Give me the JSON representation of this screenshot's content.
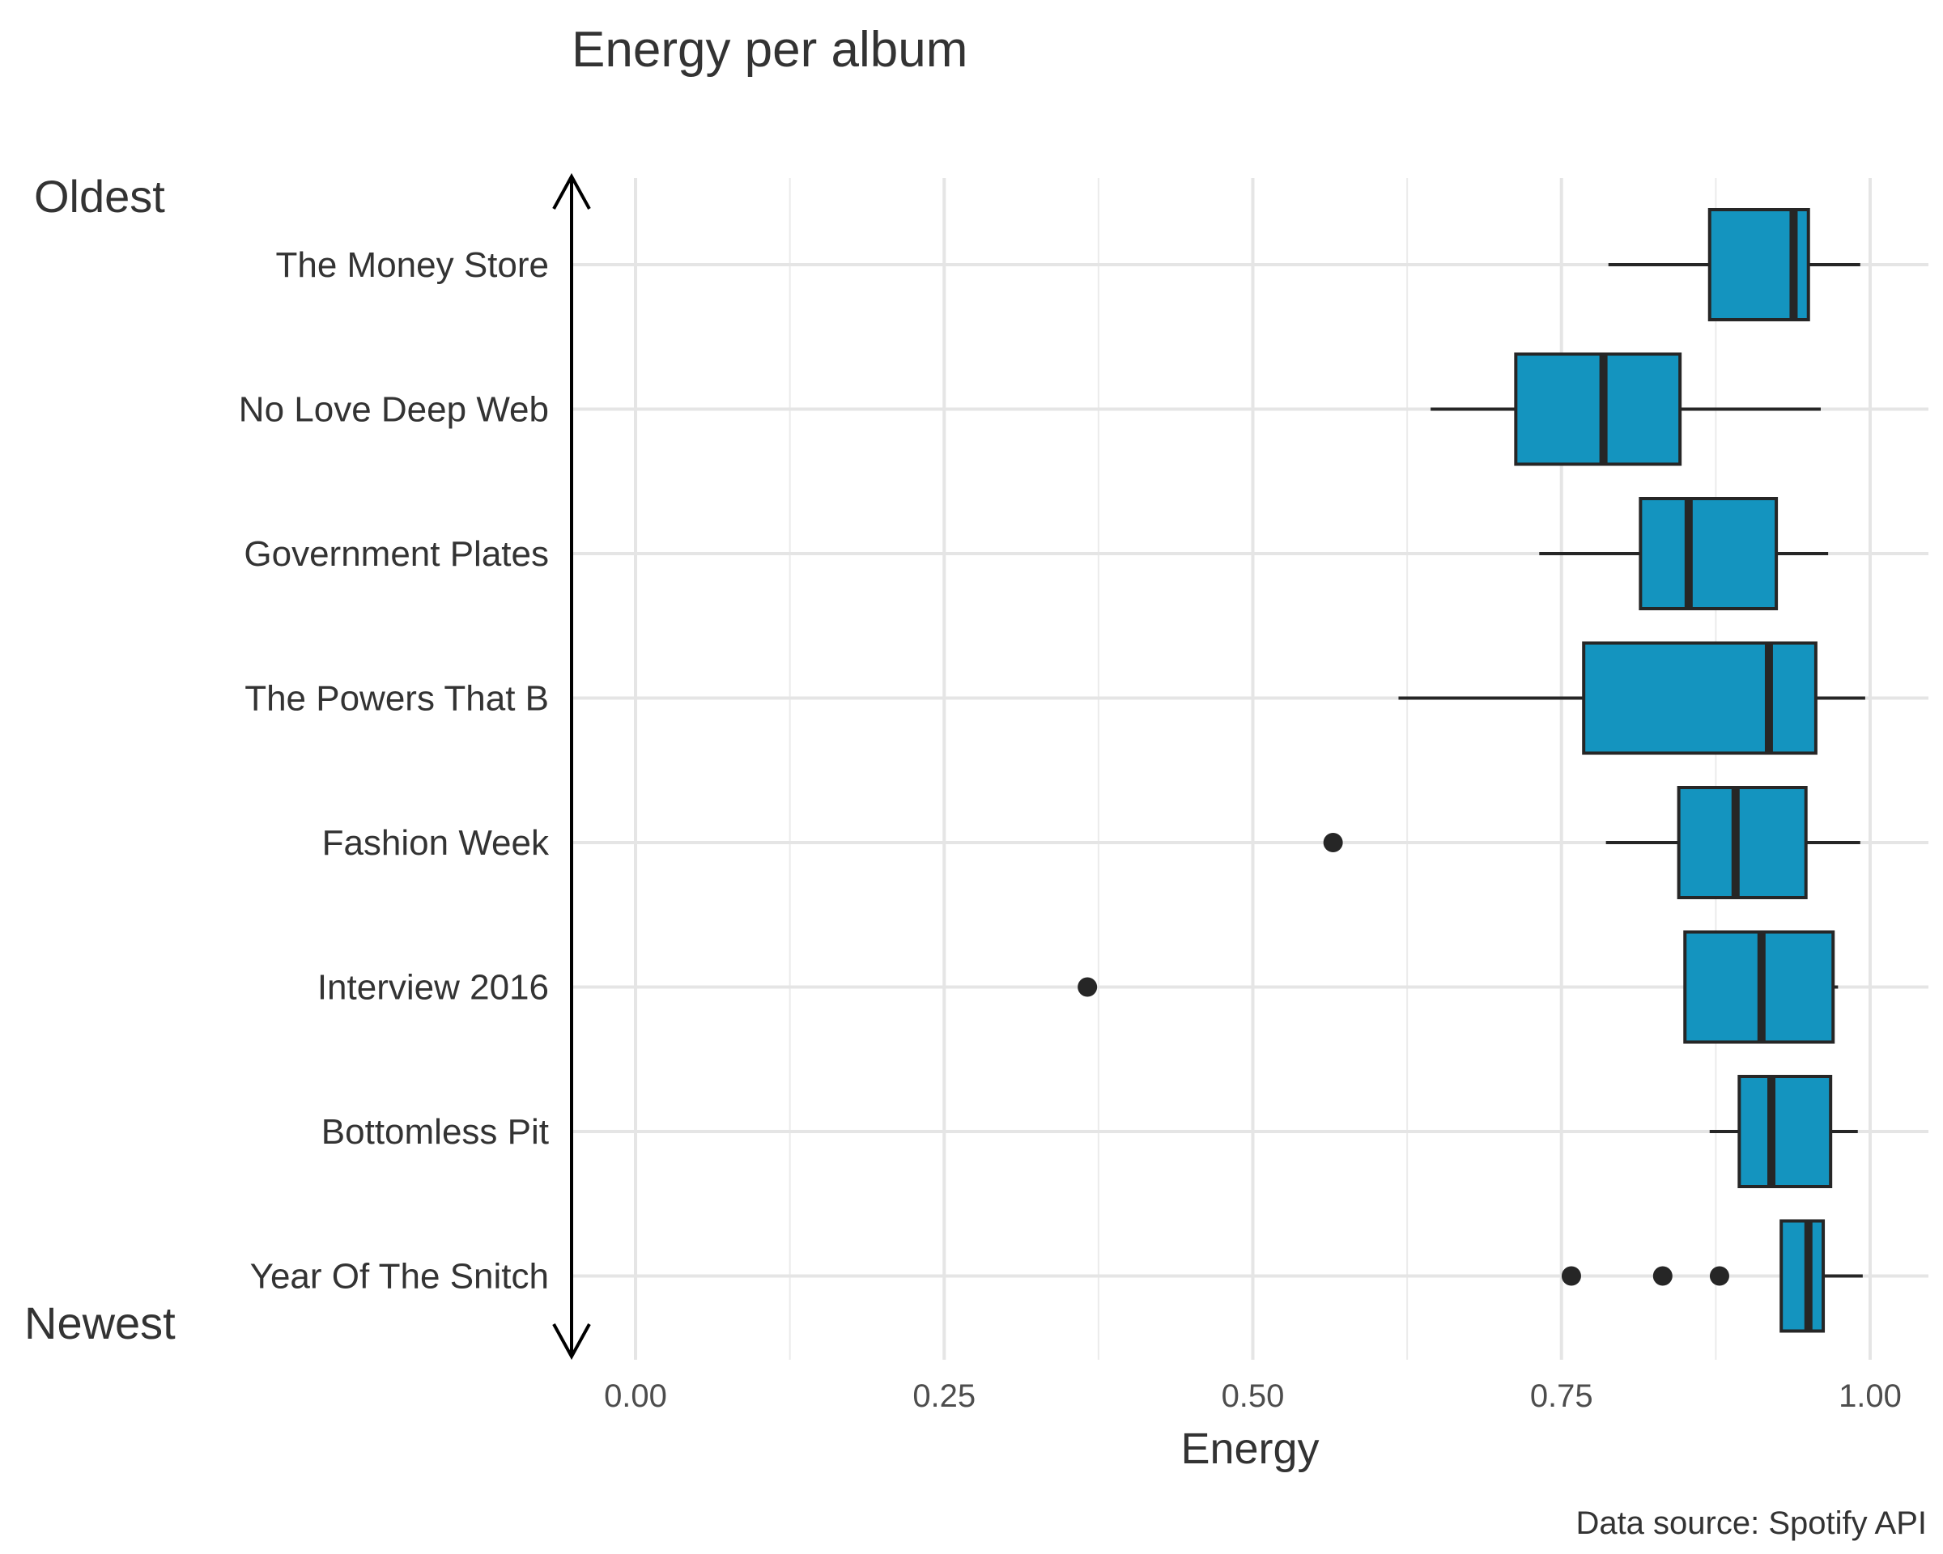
{
  "chart_data": {
    "type": "boxplot",
    "title": "Energy per album",
    "xlabel": "Energy",
    "ylabel": "",
    "caption": "Data source: Spotify API",
    "arrow_labels": {
      "top": "Oldest",
      "bottom": "Newest"
    },
    "xlim": [
      -0.05,
      1.05
    ],
    "xticks": [
      0,
      0.25,
      0.5,
      0.75,
      1
    ],
    "xtick_labels": [
      "0.00",
      "0.25",
      "0.50",
      "0.75",
      "1.00"
    ],
    "grid": true,
    "box_fill": "#1494bf",
    "box_stroke": "#262626",
    "categories": [
      "The Money Store",
      "No Love Deep Web",
      "Government Plates",
      "The Powers That B",
      "Fashion Week",
      "Interview 2016",
      "Bottomless Pit",
      "Year Of The Snitch"
    ],
    "boxes": [
      {
        "min": 0.788,
        "q1": 0.87,
        "median": 0.938,
        "q3": 0.95,
        "max": 0.992,
        "outliers": []
      },
      {
        "min": 0.644,
        "q1": 0.713,
        "median": 0.784,
        "q3": 0.846,
        "max": 0.96,
        "outliers": []
      },
      {
        "min": 0.732,
        "q1": 0.814,
        "median": 0.853,
        "q3": 0.924,
        "max": 0.966,
        "outliers": []
      },
      {
        "min": 0.618,
        "q1": 0.768,
        "median": 0.918,
        "q3": 0.956,
        "max": 0.996,
        "outliers": []
      },
      {
        "min": 0.786,
        "q1": 0.845,
        "median": 0.891,
        "q3": 0.948,
        "max": 0.992,
        "outliers": [
          0.565
        ]
      },
      {
        "min": 0.85,
        "q1": 0.85,
        "median": 0.912,
        "q3": 0.97,
        "max": 0.974,
        "outliers": [
          0.366
        ]
      },
      {
        "min": 0.87,
        "q1": 0.894,
        "median": 0.92,
        "q3": 0.968,
        "max": 0.99,
        "outliers": []
      },
      {
        "min": 0.928,
        "q1": 0.928,
        "median": 0.95,
        "q3": 0.962,
        "max": 0.994,
        "outliers": [
          0.758,
          0.832,
          0.878
        ]
      }
    ]
  }
}
